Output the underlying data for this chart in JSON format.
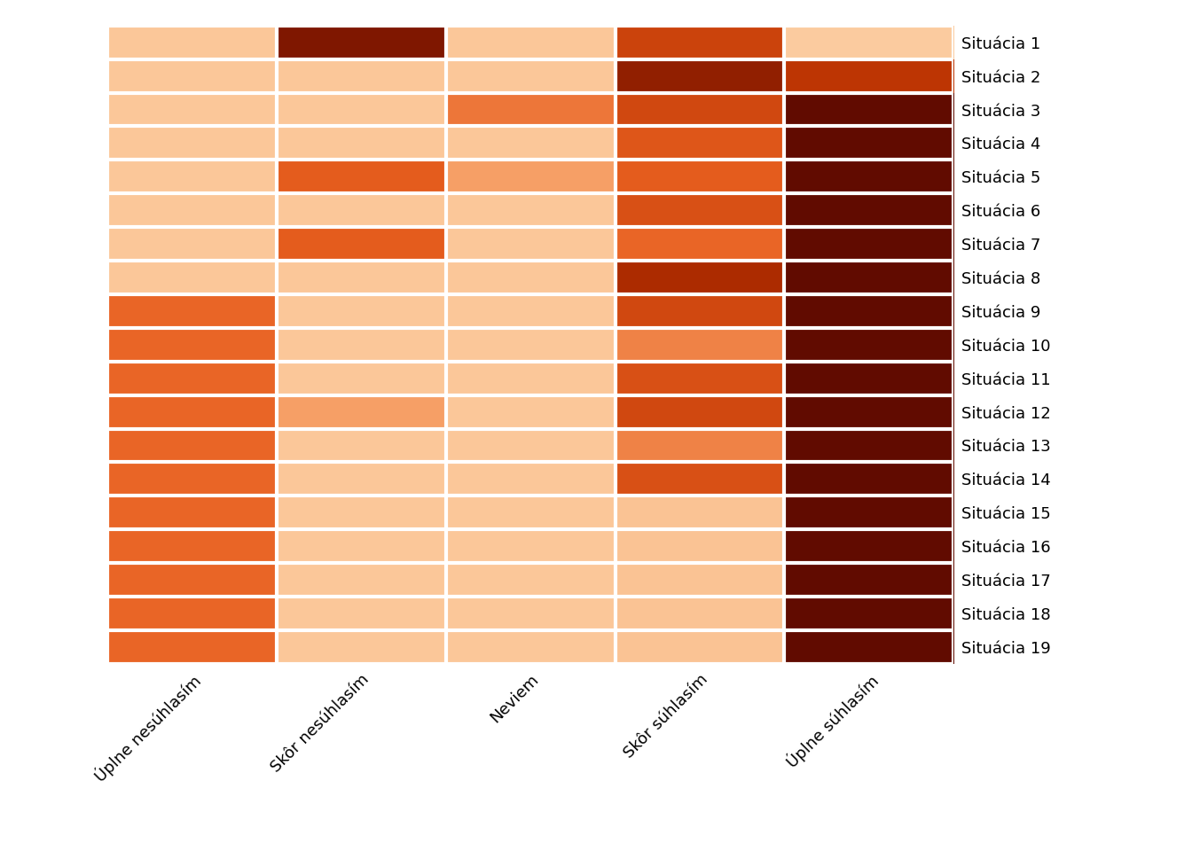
{
  "rows": [
    "Situácia 1",
    "Situácia 2",
    "Situácia 3",
    "Situácia 4",
    "Situácia 5",
    "Situácia 6",
    "Situácia 7",
    "Situácia 8",
    "Situácia 9",
    "Situácia 10",
    "Situácia 11",
    "Situácia 12",
    "Situácia 13",
    "Situácia 14",
    "Situácia 15",
    "Situácia 16",
    "Situácia 17",
    "Situácia 18",
    "Situácia 19"
  ],
  "cols": [
    "Úplne nesúhlasím",
    "Skôr nesúhlasím",
    "Neviem",
    "Skôr súhlasím",
    "Úplne súhlasím"
  ],
  "matrix": [
    [
      10,
      90,
      10,
      65,
      8
    ],
    [
      10,
      10,
      10,
      85,
      72
    ],
    [
      10,
      10,
      42,
      62,
      98
    ],
    [
      10,
      10,
      10,
      55,
      98
    ],
    [
      10,
      52,
      28,
      52,
      98
    ],
    [
      10,
      10,
      10,
      58,
      98
    ],
    [
      10,
      52,
      10,
      48,
      98
    ],
    [
      10,
      10,
      10,
      78,
      98
    ],
    [
      48,
      10,
      10,
      62,
      98
    ],
    [
      48,
      10,
      10,
      38,
      98
    ],
    [
      48,
      10,
      10,
      58,
      98
    ],
    [
      48,
      28,
      10,
      62,
      98
    ],
    [
      48,
      10,
      10,
      38,
      98
    ],
    [
      48,
      10,
      10,
      58,
      98
    ],
    [
      48,
      10,
      10,
      12,
      98
    ],
    [
      48,
      10,
      10,
      12,
      98
    ],
    [
      48,
      10,
      10,
      12,
      98
    ],
    [
      48,
      10,
      10,
      12,
      98
    ],
    [
      48,
      10,
      10,
      12,
      98
    ]
  ],
  "cmap_colors": [
    "#FDDCB5",
    "#F8A870",
    "#E86020",
    "#B83000",
    "#5A0800"
  ],
  "vmin": 0,
  "vmax": 100,
  "background_color": "#ffffff",
  "label_fontsize": 13,
  "grid_color": "#ffffff",
  "grid_linewidth": 3
}
